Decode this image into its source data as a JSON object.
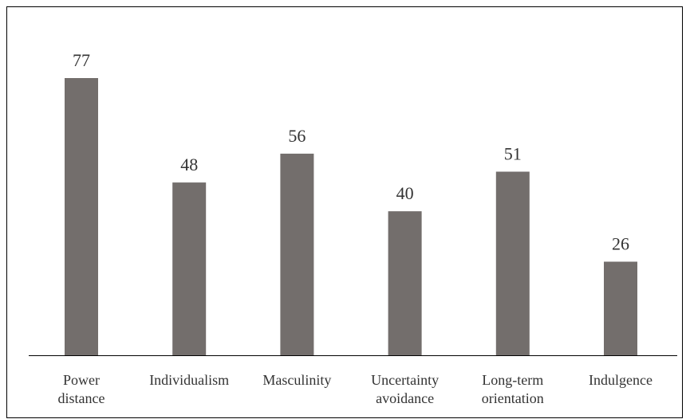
{
  "chart_data": {
    "type": "bar",
    "categories": [
      [
        "Power",
        "distance"
      ],
      [
        "Individualism"
      ],
      [
        "Masculinity"
      ],
      [
        "Uncertainty",
        "avoidance"
      ],
      [
        "Long-term",
        "orientation"
      ],
      [
        "Indulgence"
      ]
    ],
    "values": [
      77,
      48,
      56,
      40,
      51,
      26
    ],
    "data_labels": [
      "77",
      "48",
      "56",
      "40",
      "51",
      "26"
    ],
    "ylim": [
      0,
      80
    ],
    "grid": false,
    "legend": "none",
    "colors": {
      "bar": "#736e6c"
    }
  }
}
